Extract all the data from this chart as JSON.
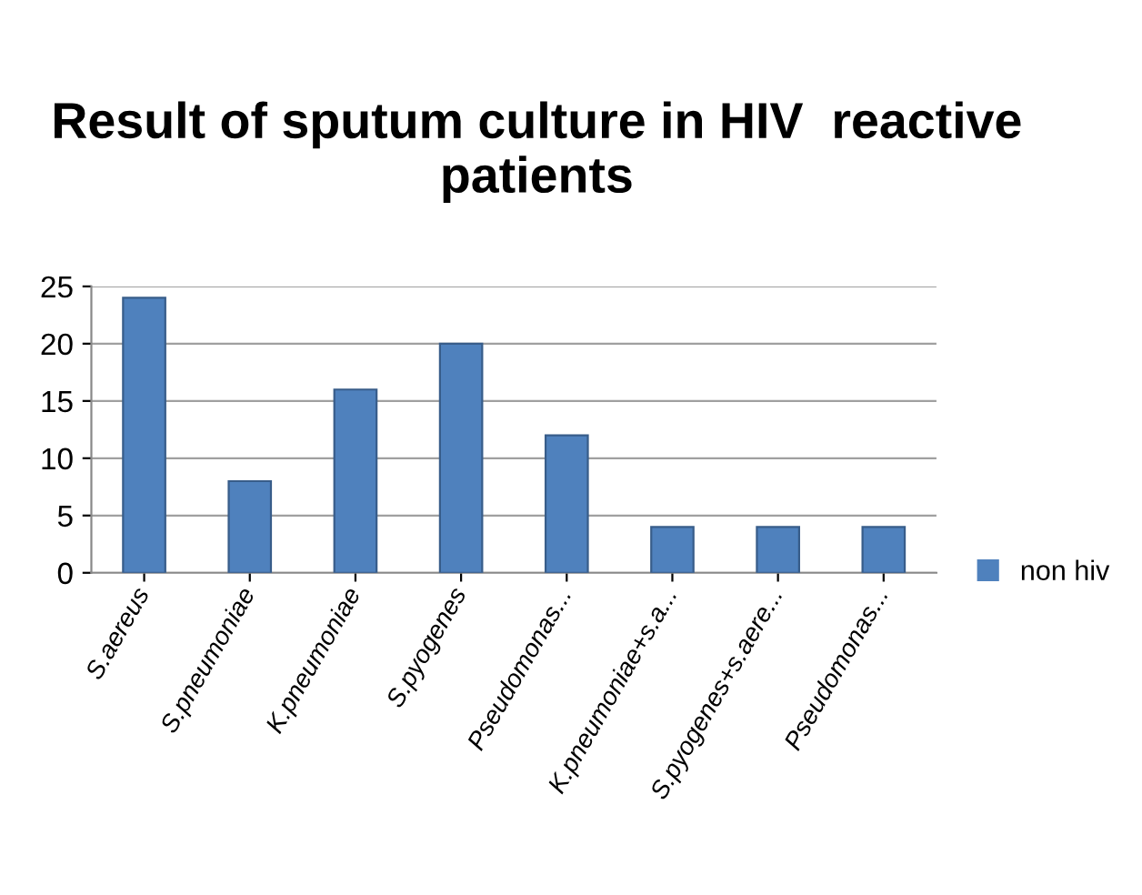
{
  "chart_data": {
    "type": "bar",
    "title": "Result of sputum culture in HIV  reactive patients",
    "categories": [
      "S.aereus",
      "S.pneumoniae",
      "K.pneumoniae",
      "S.pyogenes",
      "Pseudomonas...",
      "K.pneumoniae+s.a...",
      "S.pyogenes+s.aere...",
      "Pseudomonas..."
    ],
    "series": [
      {
        "name": "non hiv",
        "color": "#4f81bd",
        "values": [
          24,
          8,
          16,
          20,
          12,
          4,
          4,
          4
        ]
      }
    ],
    "ylim": [
      0,
      25
    ],
    "yticks": [
      0,
      5,
      10,
      15,
      20,
      25
    ],
    "grid": "y",
    "legend": "right"
  }
}
